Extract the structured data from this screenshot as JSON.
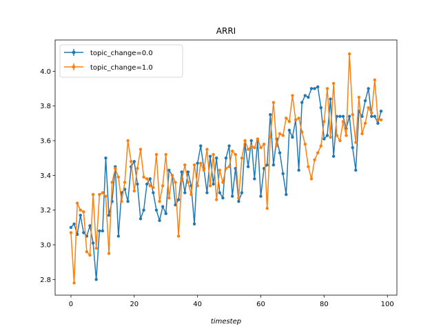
{
  "chart_data": {
    "type": "line",
    "title": "ARRI",
    "xlabel": "timestep",
    "ylabel": "",
    "xlim": [
      -5,
      103
    ],
    "ylim": [
      2.71,
      4.18
    ],
    "xticks": [
      0,
      20,
      40,
      60,
      80,
      100
    ],
    "xtick_labels": [
      "0",
      "20",
      "40",
      "60",
      "80",
      "100"
    ],
    "yticks": [
      2.8,
      3.0,
      3.2,
      3.4,
      3.6,
      3.8,
      4.0
    ],
    "ytick_labels": [
      "2.8",
      "3.0",
      "3.2",
      "3.4",
      "3.6",
      "3.8",
      "4.0"
    ],
    "grid": false,
    "legend": "top-left",
    "series": [
      {
        "name": "topic_change=0.0",
        "color": "#1f77b4",
        "x": [
          0,
          1,
          2,
          3,
          4,
          5,
          6,
          7,
          8,
          9,
          10,
          11,
          12,
          13,
          14,
          15,
          16,
          17,
          18,
          19,
          20,
          21,
          22,
          23,
          24,
          25,
          26,
          27,
          28,
          29,
          30,
          31,
          32,
          33,
          34,
          35,
          36,
          37,
          38,
          39,
          40,
          41,
          42,
          43,
          44,
          45,
          46,
          47,
          48,
          49,
          50,
          51,
          52,
          53,
          54,
          55,
          56,
          57,
          58,
          59,
          60,
          61,
          62,
          63,
          64,
          65,
          66,
          67,
          68,
          69,
          70,
          71,
          72,
          73,
          74,
          75,
          76,
          77,
          78,
          79,
          80,
          81,
          82,
          83,
          84,
          85,
          86,
          87,
          88,
          89,
          90,
          91,
          92,
          93,
          94,
          95,
          96,
          97,
          98
        ],
        "y": [
          3.1,
          3.12,
          3.06,
          3.17,
          3.07,
          3.05,
          3.11,
          3.01,
          2.8,
          3.08,
          3.08,
          3.5,
          3.17,
          3.25,
          3.45,
          3.05,
          3.3,
          3.32,
          3.25,
          3.45,
          3.48,
          3.35,
          3.15,
          3.2,
          3.35,
          3.38,
          3.3,
          3.2,
          3.14,
          3.22,
          3.18,
          3.43,
          3.4,
          3.23,
          3.26,
          3.42,
          3.3,
          3.42,
          3.34,
          3.12,
          3.47,
          3.57,
          3.44,
          3.3,
          3.51,
          3.35,
          3.5,
          3.3,
          3.27,
          3.5,
          3.57,
          3.28,
          3.44,
          3.25,
          3.3,
          3.58,
          3.45,
          3.6,
          3.38,
          3.6,
          3.28,
          3.44,
          3.46,
          3.75,
          3.46,
          3.61,
          3.53,
          3.41,
          3.29,
          3.66,
          3.62,
          3.72,
          3.43,
          3.82,
          3.86,
          3.85,
          3.9,
          3.9,
          3.91,
          3.79,
          3.61,
          3.63,
          3.84,
          3.51,
          3.74,
          3.74,
          3.74,
          3.67,
          3.74,
          3.56,
          3.43,
          3.77,
          3.74,
          3.83,
          3.9,
          3.74,
          3.74,
          3.7,
          3.77
        ]
      },
      {
        "name": "topic_change=1.0",
        "color": "#ff7f0e",
        "x": [
          0,
          1,
          2,
          3,
          4,
          5,
          6,
          7,
          8,
          9,
          10,
          11,
          12,
          13,
          14,
          15,
          16,
          17,
          18,
          19,
          20,
          21,
          22,
          23,
          24,
          25,
          26,
          27,
          28,
          29,
          30,
          31,
          32,
          33,
          34,
          35,
          36,
          37,
          38,
          39,
          40,
          41,
          42,
          43,
          44,
          45,
          46,
          47,
          48,
          49,
          50,
          51,
          52,
          53,
          54,
          55,
          56,
          57,
          58,
          59,
          60,
          61,
          62,
          63,
          64,
          65,
          66,
          67,
          68,
          69,
          70,
          71,
          72,
          73,
          74,
          75,
          76,
          77,
          78,
          79,
          80,
          81,
          82,
          83,
          84,
          85,
          86,
          87,
          88,
          89,
          90,
          91,
          92,
          93,
          94,
          95,
          96,
          97,
          98
        ],
        "y": [
          3.07,
          2.78,
          3.24,
          3.2,
          3.19,
          2.96,
          2.94,
          3.29,
          2.98,
          3.29,
          3.3,
          3.28,
          2.95,
          3.36,
          3.44,
          3.39,
          3.25,
          3.36,
          3.6,
          3.48,
          3.31,
          3.44,
          3.55,
          3.39,
          3.38,
          3.34,
          3.33,
          3.52,
          3.25,
          3.34,
          3.52,
          3.27,
          3.4,
          3.36,
          3.05,
          3.37,
          3.46,
          3.36,
          3.29,
          3.46,
          3.34,
          3.47,
          3.43,
          3.55,
          3.34,
          3.52,
          3.26,
          3.43,
          3.36,
          3.44,
          3.45,
          3.54,
          3.52,
          3.27,
          3.5,
          3.6,
          3.55,
          3.57,
          3.56,
          3.61,
          3.56,
          3.58,
          3.21,
          3.62,
          3.82,
          3.57,
          3.64,
          3.63,
          3.73,
          3.71,
          3.86,
          3.72,
          3.73,
          3.65,
          3.58,
          3.45,
          3.38,
          3.49,
          3.53,
          3.57,
          3.71,
          3.9,
          3.62,
          3.93,
          3.63,
          3.6,
          3.71,
          3.63,
          4.1,
          3.75,
          3.59,
          3.85,
          3.64,
          3.7,
          3.79,
          3.76,
          3.95,
          3.72,
          3.72
        ]
      }
    ]
  }
}
